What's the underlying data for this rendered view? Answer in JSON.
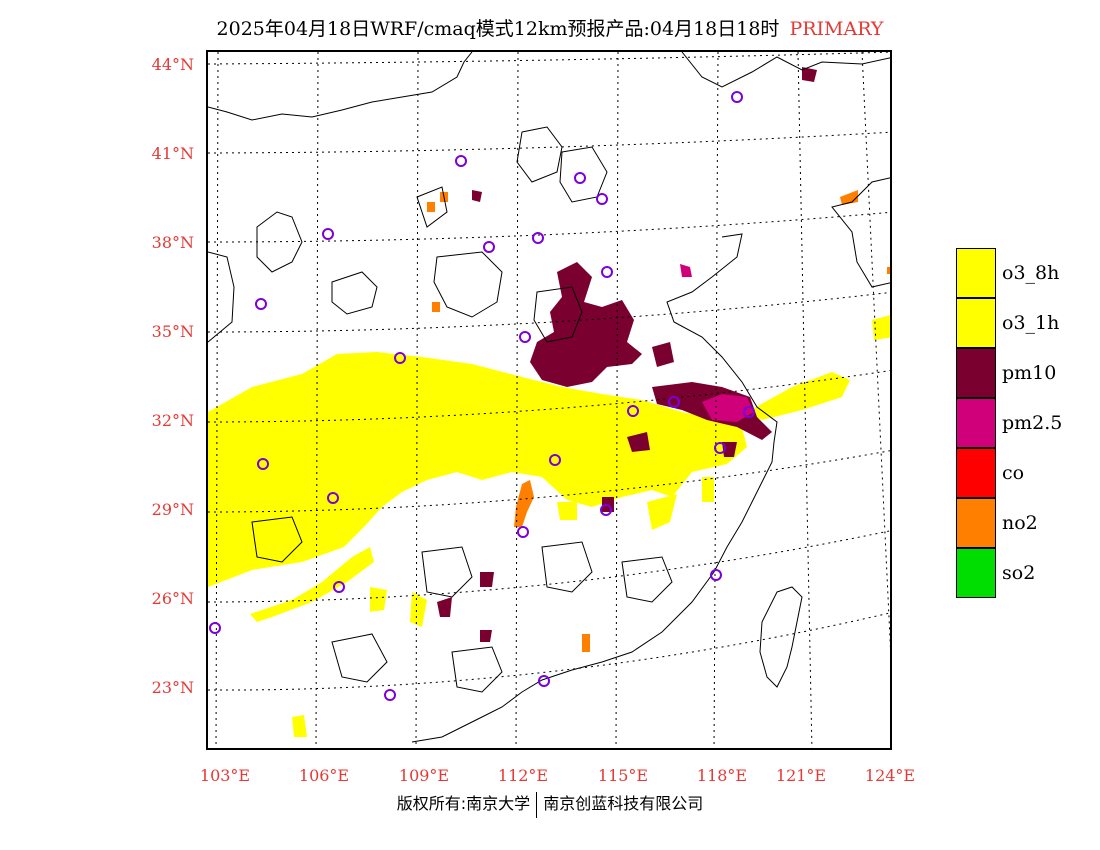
{
  "title": {
    "text": "2025年04月18日WRF/cmaq模式12km预报产品:04月18日18时",
    "tag": "PRIMARY"
  },
  "map": {
    "lat_labels": [
      "44°N",
      "41°N",
      "38°N",
      "35°N",
      "32°N",
      "29°N",
      "26°N",
      "23°N"
    ],
    "lon_labels": [
      "103°E",
      "106°E",
      "109°E",
      "112°E",
      "115°E",
      "118°E",
      "121°E",
      "124°E"
    ]
  },
  "legend": [
    {
      "label": "o3_8h",
      "color": "#ffff00"
    },
    {
      "label": "o3_1h",
      "color": "#ffff00"
    },
    {
      "label": "pm10",
      "color": "#7a0030"
    },
    {
      "label": "pm2.5",
      "color": "#d0007a"
    },
    {
      "label": "co",
      "color": "#ff0000"
    },
    {
      "label": "no2",
      "color": "#ff7f00"
    },
    {
      "label": "so2",
      "color": "#00dd00"
    }
  ],
  "footer": {
    "left": "版权所有:南京大学",
    "right": "南京创蓝科技有限公司"
  }
}
